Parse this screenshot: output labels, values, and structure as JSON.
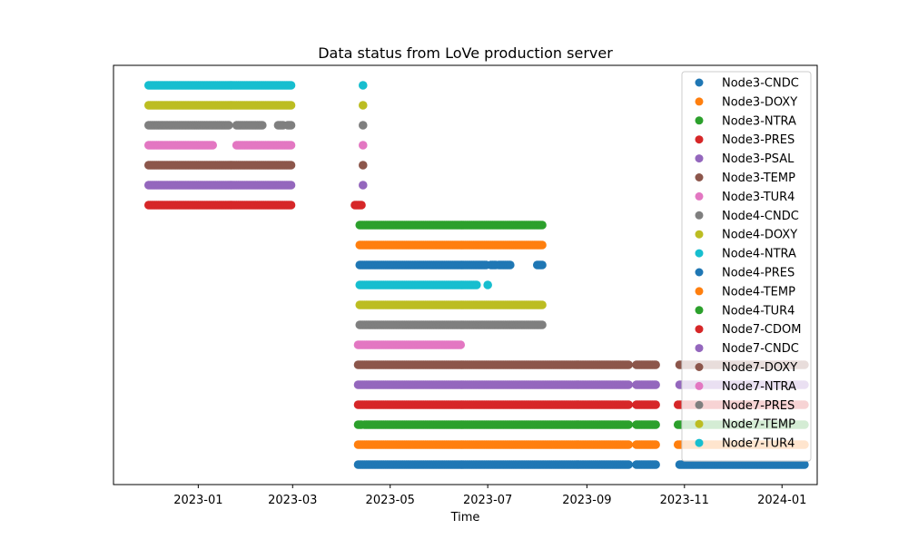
{
  "chart_data": {
    "type": "scatter",
    "title": "Data status from LoVe production server",
    "xlabel": "Time",
    "ylabel": "",
    "x_axis": {
      "scale": "date",
      "range": [
        "2022-11-09",
        "2024-01-23"
      ],
      "ticks": [
        "2023-01",
        "2023-03",
        "2023-05",
        "2023-07",
        "2023-09",
        "2023-11",
        "2024-01"
      ]
    },
    "y_axis": {
      "ticks": false,
      "range": [
        -1,
        20
      ]
    },
    "grid": false,
    "legend": "upper-right",
    "series": [
      {
        "name": "Node3-CNDC",
        "color": "#1f77b4",
        "level": 0,
        "intervals": [
          [
            "2023-04-11",
            "2023-09-27"
          ],
          [
            "2023-10-02",
            "2023-10-14"
          ],
          [
            "2023-10-29",
            "2024-01-15"
          ]
        ]
      },
      {
        "name": "Node3-DOXY",
        "color": "#ff7f0e",
        "level": 1,
        "intervals": [
          [
            "2023-04-11",
            "2023-09-27"
          ],
          [
            "2023-10-02",
            "2023-10-14"
          ],
          [
            "2023-10-28",
            "2024-01-15"
          ]
        ]
      },
      {
        "name": "Node3-NTRA",
        "color": "#2ca02c",
        "level": 2,
        "intervals": [
          [
            "2023-04-11",
            "2023-04-13"
          ],
          [
            "2023-04-15",
            "2023-09-27"
          ],
          [
            "2023-10-02",
            "2023-10-14"
          ],
          [
            "2023-10-28",
            "2024-01-15"
          ]
        ]
      },
      {
        "name": "Node3-PRES",
        "color": "#d62728",
        "level": 3,
        "intervals": [
          [
            "2023-04-11",
            "2023-09-27"
          ],
          [
            "2023-10-02",
            "2023-10-14"
          ],
          [
            "2023-10-28",
            "2024-01-15"
          ]
        ]
      },
      {
        "name": "Node3-PSAL",
        "color": "#9467bd",
        "level": 4,
        "intervals": [
          [
            "2023-04-11",
            "2023-09-27"
          ],
          [
            "2023-10-02",
            "2023-10-14"
          ],
          [
            "2023-10-29",
            "2024-01-15"
          ]
        ]
      },
      {
        "name": "Node3-TEMP",
        "color": "#8c564b",
        "level": 5,
        "intervals": [
          [
            "2023-04-11",
            "2023-09-27"
          ],
          [
            "2023-10-02",
            "2023-10-14"
          ],
          [
            "2023-10-29",
            "2024-01-15"
          ]
        ]
      },
      {
        "name": "Node3-TUR4",
        "color": "#e377c2",
        "level": 6,
        "intervals": [
          [
            "2023-04-11",
            "2023-06-14"
          ]
        ]
      },
      {
        "name": "Node4-CNDC",
        "color": "#7f7f7f",
        "level": 7,
        "intervals": [
          [
            "2023-04-12",
            "2023-08-04"
          ]
        ]
      },
      {
        "name": "Node4-DOXY",
        "color": "#bcbd22",
        "level": 8,
        "intervals": [
          [
            "2023-04-12",
            "2023-08-04"
          ]
        ]
      },
      {
        "name": "Node4-NTRA",
        "color": "#17becf",
        "level": 9,
        "intervals": [
          [
            "2023-04-12",
            "2023-06-24"
          ],
          [
            "2023-07-01",
            "2023-07-01"
          ]
        ]
      },
      {
        "name": "Node4-PRES",
        "color": "#1f77b4",
        "level": 10,
        "intervals": [
          [
            "2023-04-12",
            "2023-06-30"
          ],
          [
            "2023-07-03",
            "2023-07-06"
          ],
          [
            "2023-07-08",
            "2023-07-15"
          ],
          [
            "2023-08-01",
            "2023-08-04"
          ]
        ]
      },
      {
        "name": "Node4-TEMP",
        "color": "#ff7f0e",
        "level": 11,
        "intervals": [
          [
            "2023-04-12",
            "2023-08-04"
          ]
        ]
      },
      {
        "name": "Node4-TUR4",
        "color": "#2ca02c",
        "level": 12,
        "intervals": [
          [
            "2023-04-12",
            "2023-08-04"
          ]
        ]
      },
      {
        "name": "Node7-CDOM",
        "color": "#d62728",
        "level": 13,
        "intervals": [
          [
            "2022-12-01",
            "2023-02-28"
          ],
          [
            "2023-04-09",
            "2023-04-13"
          ]
        ]
      },
      {
        "name": "Node7-CNDC",
        "color": "#9467bd",
        "level": 14,
        "intervals": [
          [
            "2022-12-01",
            "2023-02-28"
          ],
          [
            "2023-04-14",
            "2023-04-14"
          ]
        ]
      },
      {
        "name": "Node7-DOXY",
        "color": "#8c564b",
        "level": 15,
        "intervals": [
          [
            "2022-12-01",
            "2023-02-28"
          ],
          [
            "2023-04-14",
            "2023-04-14"
          ]
        ]
      },
      {
        "name": "Node7-NTRA",
        "color": "#e377c2",
        "level": 16,
        "intervals": [
          [
            "2022-12-01",
            "2023-01-10"
          ],
          [
            "2023-01-25",
            "2023-02-28"
          ],
          [
            "2023-04-14",
            "2023-04-14"
          ]
        ]
      },
      {
        "name": "Node7-PRES",
        "color": "#7f7f7f",
        "level": 17,
        "intervals": [
          [
            "2022-12-01",
            "2023-01-20"
          ],
          [
            "2023-01-25",
            "2023-02-10"
          ],
          [
            "2023-02-20",
            "2023-02-23"
          ],
          [
            "2023-02-26",
            "2023-02-28"
          ],
          [
            "2023-04-14",
            "2023-04-14"
          ]
        ]
      },
      {
        "name": "Node7-TEMP",
        "color": "#bcbd22",
        "level": 18,
        "intervals": [
          [
            "2022-12-01",
            "2023-02-28"
          ],
          [
            "2023-04-14",
            "2023-04-14"
          ]
        ]
      },
      {
        "name": "Node7-TUR4",
        "color": "#17becf",
        "level": 19,
        "intervals": [
          [
            "2022-12-01",
            "2023-02-28"
          ],
          [
            "2023-04-14",
            "2023-04-14"
          ]
        ]
      }
    ]
  }
}
